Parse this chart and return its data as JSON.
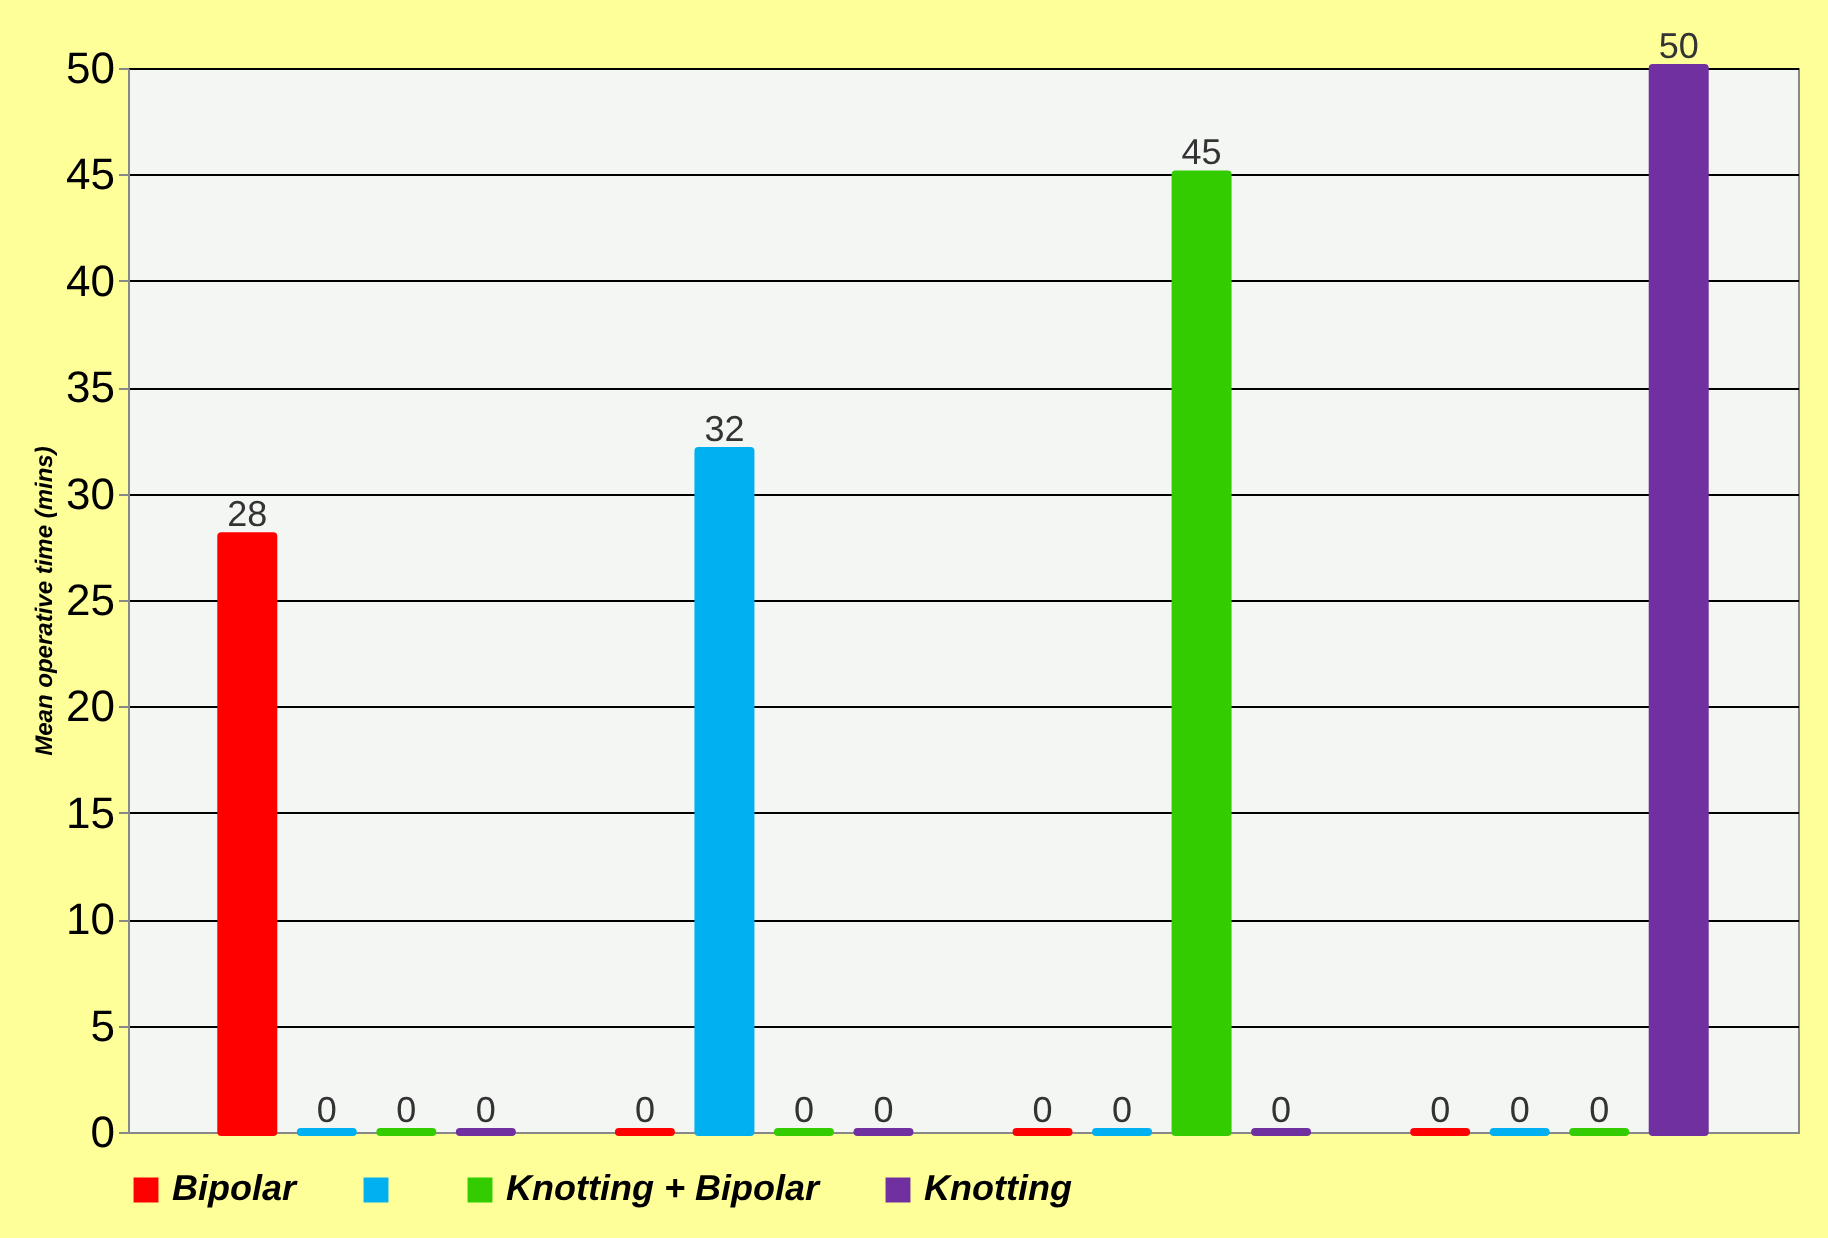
{
  "chart_data": {
    "type": "bar",
    "ylabel": "Mean operative time (mins)",
    "categories": [
      null,
      null,
      null,
      null
    ],
    "series": [
      {
        "name": "Bipolar",
        "color": "#ff0000",
        "values": [
          28,
          0,
          0,
          0
        ]
      },
      {
        "color": "#00b0f0",
        "values": [
          0,
          32,
          0,
          0
        ]
      },
      {
        "name": "Knotting + Bipolar",
        "color": "#33cc00",
        "values": [
          0,
          0,
          45,
          0
        ]
      },
      {
        "name": "Knotting",
        "color": "#7030a0",
        "values": [
          0,
          0,
          0,
          50
        ]
      }
    ],
    "ylim": [
      0,
      50
    ],
    "yticks": [
      0,
      5,
      10,
      15,
      20,
      25,
      30,
      35,
      40,
      45,
      50
    ],
    "grid": "y",
    "legend": "bottom",
    "data_labels": true
  }
}
